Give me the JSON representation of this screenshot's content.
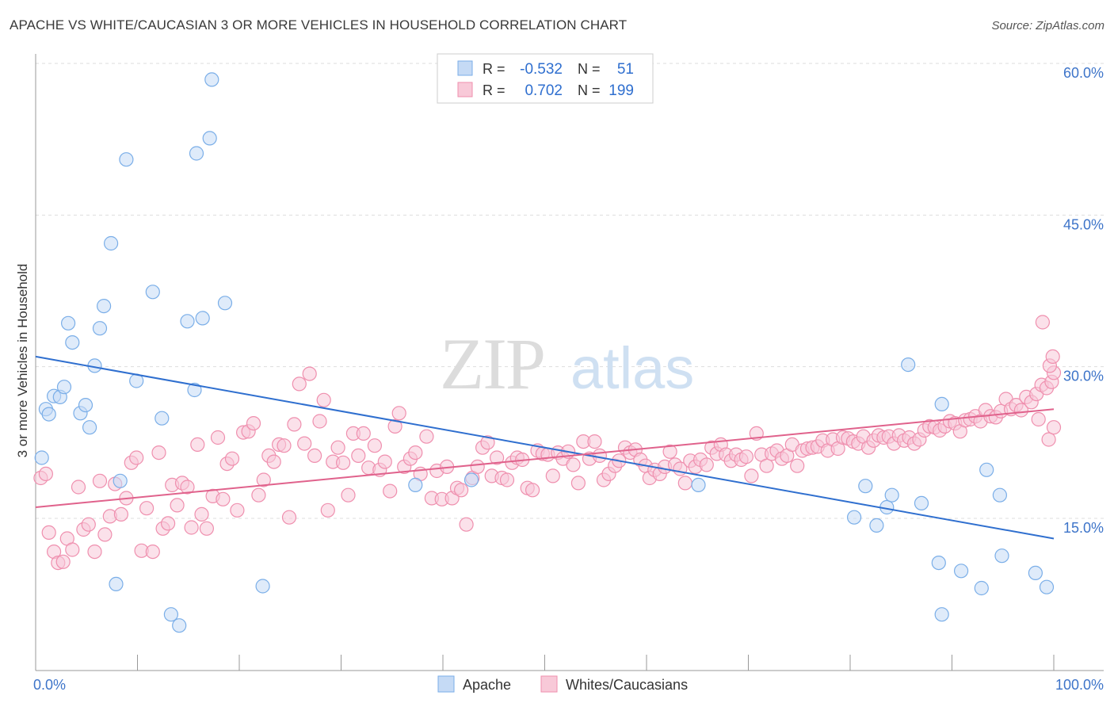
{
  "header": {
    "title": "APACHE VS WHITE/CAUCASIAN 3 OR MORE VEHICLES IN HOUSEHOLD CORRELATION CHART",
    "source": "Source: ZipAtlas.com"
  },
  "watermark": {
    "zip": "ZIP",
    "atlas": "atlas"
  },
  "chart_data": {
    "type": "scatter",
    "ylabel": "3 or more Vehicles in Household",
    "xlim": [
      0,
      100
    ],
    "ylim": [
      0,
      63
    ],
    "x_tick_labels": [
      "0.0%",
      "100.0%"
    ],
    "y_ticks": [
      15,
      30,
      45,
      60
    ],
    "y_tick_labels": [
      "15.0%",
      "30.0%",
      "45.0%",
      "60.0%"
    ],
    "grid": true,
    "legend_placement": "top-center",
    "stats_box": {
      "r_label": "R =",
      "n_label": "N =",
      "rows": [
        {
          "r": "-0.532",
          "n": "51"
        },
        {
          "r": "0.702",
          "n": "199"
        }
      ]
    },
    "series": [
      {
        "name": "Apache",
        "color": "#7aaee8",
        "fill": "#c5daf5",
        "line_color": "#2f6fcf",
        "trend": {
          "x": [
            0,
            100
          ],
          "y": [
            31.0,
            13.0
          ]
        },
        "points": [
          [
            0.6,
            21.0
          ],
          [
            1.0,
            25.8
          ],
          [
            1.3,
            25.3
          ],
          [
            1.8,
            27.1
          ],
          [
            2.4,
            27.0
          ],
          [
            2.8,
            28.0
          ],
          [
            3.2,
            34.3
          ],
          [
            3.6,
            32.4
          ],
          [
            4.4,
            25.4
          ],
          [
            4.9,
            26.2
          ],
          [
            5.3,
            24.0
          ],
          [
            5.8,
            30.1
          ],
          [
            6.3,
            33.8
          ],
          [
            6.7,
            36.0
          ],
          [
            7.4,
            42.2
          ],
          [
            7.9,
            8.5
          ],
          [
            8.3,
            18.7
          ],
          [
            8.9,
            50.5
          ],
          [
            9.9,
            28.6
          ],
          [
            11.5,
            37.4
          ],
          [
            12.4,
            24.9
          ],
          [
            13.3,
            5.5
          ],
          [
            14.1,
            4.4
          ],
          [
            14.9,
            34.5
          ],
          [
            15.6,
            27.7
          ],
          [
            15.8,
            51.1
          ],
          [
            16.4,
            34.8
          ],
          [
            17.1,
            52.6
          ],
          [
            17.3,
            58.4
          ],
          [
            18.6,
            36.3
          ],
          [
            22.3,
            8.3
          ],
          [
            37.3,
            18.3
          ],
          [
            42.8,
            18.8
          ],
          [
            65.1,
            18.3
          ],
          [
            80.4,
            15.1
          ],
          [
            81.5,
            18.2
          ],
          [
            82.6,
            14.3
          ],
          [
            83.6,
            16.1
          ],
          [
            84.1,
            17.3
          ],
          [
            85.7,
            30.2
          ],
          [
            87.0,
            16.5
          ],
          [
            88.7,
            10.6
          ],
          [
            89.0,
            26.3
          ],
          [
            89.0,
            5.5
          ],
          [
            90.9,
            9.8
          ],
          [
            92.9,
            8.1
          ],
          [
            93.4,
            19.8
          ],
          [
            94.7,
            17.3
          ],
          [
            94.9,
            11.3
          ],
          [
            98.2,
            9.6
          ],
          [
            99.3,
            8.2
          ]
        ]
      },
      {
        "name": "Whites/Caucasians",
        "color": "#ef8fae",
        "fill": "#f8c9d8",
        "line_color": "#e0628c",
        "trend": {
          "x": [
            0,
            100
          ],
          "y": [
            16.1,
            25.8
          ]
        },
        "points": [
          [
            0.5,
            19.0
          ],
          [
            1.0,
            19.4
          ],
          [
            1.3,
            13.6
          ],
          [
            1.8,
            11.7
          ],
          [
            2.2,
            10.6
          ],
          [
            2.7,
            10.7
          ],
          [
            3.1,
            13.0
          ],
          [
            3.6,
            11.9
          ],
          [
            4.2,
            18.1
          ],
          [
            4.7,
            13.9
          ],
          [
            5.2,
            14.4
          ],
          [
            5.8,
            11.7
          ],
          [
            6.3,
            18.7
          ],
          [
            6.8,
            13.4
          ],
          [
            7.3,
            15.2
          ],
          [
            7.8,
            18.4
          ],
          [
            8.4,
            15.4
          ],
          [
            8.9,
            17.0
          ],
          [
            9.4,
            20.5
          ],
          [
            9.9,
            21.0
          ],
          [
            10.4,
            11.8
          ],
          [
            10.9,
            16.0
          ],
          [
            11.5,
            11.7
          ],
          [
            12.1,
            21.5
          ],
          [
            12.5,
            14.0
          ],
          [
            13.0,
            14.5
          ],
          [
            13.4,
            18.3
          ],
          [
            13.9,
            16.3
          ],
          [
            14.4,
            18.5
          ],
          [
            14.9,
            18.1
          ],
          [
            15.3,
            14.1
          ],
          [
            15.9,
            22.3
          ],
          [
            16.3,
            15.4
          ],
          [
            16.8,
            14.0
          ],
          [
            17.4,
            17.2
          ],
          [
            17.9,
            23.0
          ],
          [
            18.4,
            16.9
          ],
          [
            18.8,
            20.4
          ],
          [
            19.3,
            20.9
          ],
          [
            19.8,
            15.8
          ],
          [
            20.4,
            23.5
          ],
          [
            20.9,
            23.6
          ],
          [
            21.4,
            24.4
          ],
          [
            21.9,
            17.3
          ],
          [
            22.4,
            18.8
          ],
          [
            22.9,
            21.2
          ],
          [
            23.4,
            20.6
          ],
          [
            23.9,
            22.3
          ],
          [
            24.4,
            22.2
          ],
          [
            24.9,
            15.1
          ],
          [
            25.4,
            24.3
          ],
          [
            25.9,
            28.3
          ],
          [
            26.4,
            22.4
          ],
          [
            26.9,
            29.3
          ],
          [
            27.4,
            21.2
          ],
          [
            27.9,
            24.6
          ],
          [
            28.3,
            26.7
          ],
          [
            28.7,
            15.8
          ],
          [
            29.2,
            20.6
          ],
          [
            29.7,
            22.0
          ],
          [
            30.2,
            20.5
          ],
          [
            30.7,
            17.3
          ],
          [
            31.2,
            23.4
          ],
          [
            31.7,
            21.2
          ],
          [
            32.2,
            23.4
          ],
          [
            32.7,
            20.0
          ],
          [
            33.3,
            22.2
          ],
          [
            33.8,
            19.8
          ],
          [
            34.3,
            20.6
          ],
          [
            34.8,
            17.7
          ],
          [
            35.3,
            24.1
          ],
          [
            35.7,
            25.4
          ],
          [
            36.2,
            20.1
          ],
          [
            36.8,
            20.9
          ],
          [
            37.3,
            21.5
          ],
          [
            37.8,
            19.4
          ],
          [
            38.4,
            23.1
          ],
          [
            38.9,
            17.0
          ],
          [
            39.4,
            19.7
          ],
          [
            39.9,
            16.9
          ],
          [
            40.4,
            20.1
          ],
          [
            40.9,
            17.0
          ],
          [
            41.4,
            18.0
          ],
          [
            41.8,
            17.8
          ],
          [
            42.3,
            14.4
          ],
          [
            42.9,
            19.0
          ],
          [
            43.4,
            20.1
          ],
          [
            43.9,
            22.0
          ],
          [
            44.4,
            22.5
          ],
          [
            44.8,
            19.2
          ],
          [
            45.3,
            21.0
          ],
          [
            45.8,
            19.0
          ],
          [
            46.3,
            18.8
          ],
          [
            46.8,
            20.5
          ],
          [
            47.3,
            21.0
          ],
          [
            47.8,
            20.8
          ],
          [
            48.3,
            18.0
          ],
          [
            48.8,
            17.8
          ],
          [
            49.3,
            21.7
          ],
          [
            49.8,
            21.4
          ],
          [
            50.3,
            21.3
          ],
          [
            50.8,
            19.2
          ],
          [
            51.3,
            21.5
          ],
          [
            51.8,
            20.9
          ],
          [
            52.3,
            21.6
          ],
          [
            52.8,
            20.3
          ],
          [
            53.3,
            18.5
          ],
          [
            53.8,
            22.6
          ],
          [
            54.4,
            20.9
          ],
          [
            54.9,
            22.6
          ],
          [
            55.4,
            21.2
          ],
          [
            55.8,
            18.8
          ],
          [
            56.3,
            19.4
          ],
          [
            56.9,
            20.2
          ],
          [
            57.3,
            20.7
          ],
          [
            57.9,
            22.0
          ],
          [
            58.4,
            21.5
          ],
          [
            58.9,
            21.8
          ],
          [
            59.4,
            20.8
          ],
          [
            59.9,
            20.2
          ],
          [
            60.3,
            19.0
          ],
          [
            60.8,
            19.8
          ],
          [
            61.3,
            19.4
          ],
          [
            61.8,
            20.1
          ],
          [
            62.3,
            21.6
          ],
          [
            62.8,
            20.3
          ],
          [
            63.3,
            19.9
          ],
          [
            63.8,
            18.5
          ],
          [
            64.3,
            20.7
          ],
          [
            64.8,
            20.1
          ],
          [
            65.3,
            20.8
          ],
          [
            65.9,
            20.3
          ],
          [
            66.4,
            22.0
          ],
          [
            66.9,
            21.4
          ],
          [
            67.3,
            22.3
          ],
          [
            67.8,
            21.3
          ],
          [
            68.3,
            20.7
          ],
          [
            68.8,
            21.3
          ],
          [
            69.3,
            20.8
          ],
          [
            69.8,
            21.1
          ],
          [
            70.3,
            19.2
          ],
          [
            70.8,
            23.4
          ],
          [
            71.3,
            21.3
          ],
          [
            71.8,
            20.2
          ],
          [
            72.3,
            21.4
          ],
          [
            72.8,
            21.7
          ],
          [
            73.3,
            20.9
          ],
          [
            73.8,
            21.2
          ],
          [
            74.3,
            22.3
          ],
          [
            74.8,
            20.2
          ],
          [
            75.3,
            21.7
          ],
          [
            75.8,
            21.9
          ],
          [
            76.3,
            22.0
          ],
          [
            76.8,
            22.1
          ],
          [
            77.3,
            22.7
          ],
          [
            77.8,
            21.7
          ],
          [
            78.3,
            22.8
          ],
          [
            78.8,
            21.9
          ],
          [
            79.3,
            23.0
          ],
          [
            79.8,
            22.9
          ],
          [
            80.3,
            22.6
          ],
          [
            80.8,
            22.4
          ],
          [
            81.3,
            23.1
          ],
          [
            81.8,
            22.0
          ],
          [
            82.3,
            22.7
          ],
          [
            82.8,
            23.2
          ],
          [
            83.3,
            23.0
          ],
          [
            83.8,
            23.1
          ],
          [
            84.3,
            22.4
          ],
          [
            84.8,
            23.2
          ],
          [
            85.3,
            22.7
          ],
          [
            85.8,
            23.0
          ],
          [
            86.3,
            22.4
          ],
          [
            86.8,
            22.8
          ],
          [
            87.3,
            23.7
          ],
          [
            87.8,
            24.1
          ],
          [
            88.3,
            24.0
          ],
          [
            88.8,
            23.7
          ],
          [
            89.3,
            24.1
          ],
          [
            89.8,
            24.6
          ],
          [
            90.3,
            24.4
          ],
          [
            90.8,
            23.6
          ],
          [
            91.3,
            24.7
          ],
          [
            91.8,
            24.8
          ],
          [
            92.3,
            25.1
          ],
          [
            92.8,
            24.6
          ],
          [
            93.3,
            25.7
          ],
          [
            93.8,
            25.1
          ],
          [
            94.3,
            25.0
          ],
          [
            94.8,
            25.6
          ],
          [
            95.3,
            26.8
          ],
          [
            95.8,
            25.8
          ],
          [
            96.3,
            26.2
          ],
          [
            96.8,
            25.7
          ],
          [
            97.3,
            27.0
          ],
          [
            97.8,
            26.5
          ],
          [
            98.3,
            27.3
          ],
          [
            98.8,
            28.2
          ],
          [
            99.3,
            27.9
          ],
          [
            99.8,
            28.5
          ],
          [
            100.0,
            29.4
          ],
          [
            99.6,
            30.1
          ],
          [
            99.9,
            31.0
          ],
          [
            98.9,
            34.4
          ],
          [
            99.5,
            22.8
          ],
          [
            100.0,
            24.0
          ],
          [
            98.5,
            24.8
          ]
        ]
      }
    ]
  }
}
